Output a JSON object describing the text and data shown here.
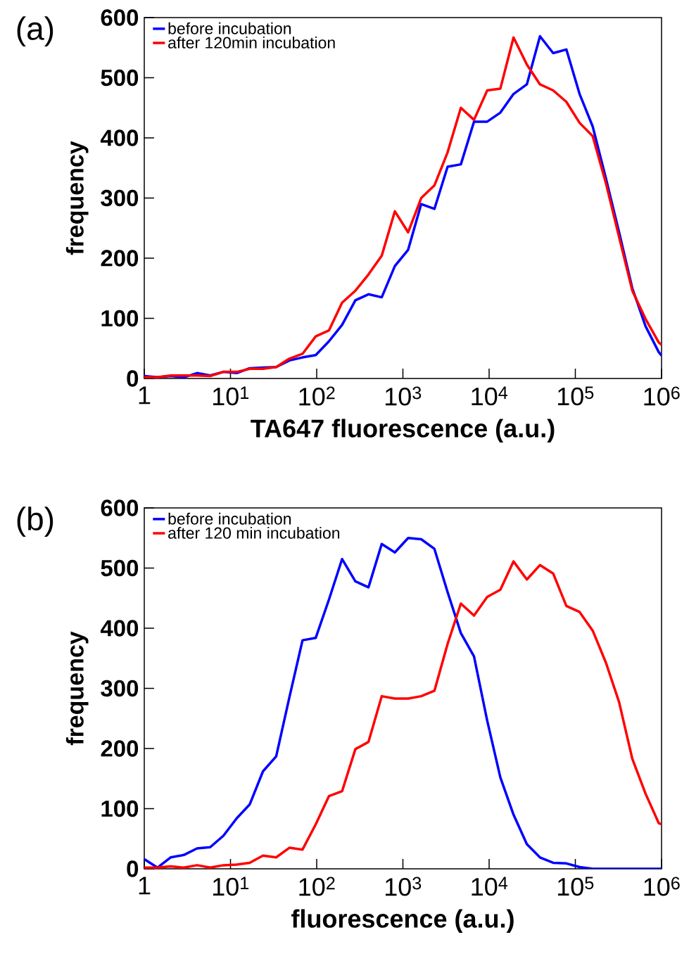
{
  "chart_data": [
    {
      "type": "line",
      "title": "(a)",
      "xlabel": "TA647 fluorescence (a.u.)",
      "ylabel": "frequency",
      "log": "x",
      "legend": "top left",
      "grid": false,
      "marker": "none",
      "line_style": "solid",
      "x": [
        1,
        1.42,
        2.02,
        2.88,
        4.09,
        5.82,
        8.28,
        11.8,
        16.7,
        23.8,
        33.9,
        48.2,
        68.5,
        97.5,
        139,
        197,
        281,
        399,
        568,
        807,
        1150,
        1630,
        2320,
        3300,
        4700,
        6680,
        9510,
        13500,
        19200,
        27400,
        38900,
        55300,
        78700,
        112000,
        159000,
        226000,
        322000,
        458000,
        652000,
        927000,
        1000000
      ],
      "xlim": [
        1,
        1000000
      ],
      "ylim": [
        0,
        600
      ],
      "xticks": [
        1,
        {
          "value": 10,
          "label": "10$^{1}$"
        },
        {
          "value": 100,
          "label": "10$^{2}$"
        },
        {
          "value": 1000,
          "label": "10$^{3}$"
        },
        {
          "value": 10000,
          "label": "10$^{4}$"
        },
        {
          "value": 100000,
          "label": "10$^{5}$"
        },
        {
          "value": 1000000,
          "label": "10$^{6}$"
        }
      ],
      "yticks": [
        0,
        100,
        200,
        300,
        400,
        500,
        600
      ],
      "series": [
        {
          "name": "before incubation",
          "color": "#0000ff",
          "values": [
            4,
            2,
            4,
            2,
            9,
            5,
            11,
            9,
            17,
            18,
            19,
            30,
            35,
            39,
            62,
            89,
            130,
            140,
            135,
            187,
            214,
            290,
            282,
            352,
            356,
            427,
            427,
            442,
            473,
            489,
            569,
            541,
            547,
            473,
            419,
            333,
            243,
            150,
            87,
            44,
            38
          ]
        },
        {
          "name": "after 120min incubation",
          "color": "#ff0000",
          "values": [
            2,
            2,
            5,
            5,
            5,
            4,
            11,
            11,
            16,
            16,
            19,
            33,
            41,
            70,
            80,
            126,
            146,
            173,
            204,
            278,
            243,
            300,
            321,
            376,
            450,
            430,
            479,
            482,
            567,
            522,
            489,
            479,
            460,
            425,
            403,
            325,
            235,
            146,
            99,
            60,
            56
          ]
        }
      ]
    },
    {
      "type": "line",
      "title": "(b)",
      "xlabel": "fluorescence (a.u.)",
      "ylabel": "frequency",
      "log": "x",
      "legend": "top left",
      "grid": false,
      "marker": "none",
      "line_style": "solid",
      "x": [
        1,
        1.42,
        2.02,
        2.88,
        4.09,
        5.82,
        8.28,
        11.8,
        16.7,
        23.8,
        33.9,
        48.2,
        68.5,
        97.5,
        139,
        197,
        281,
        399,
        568,
        807,
        1150,
        1630,
        2320,
        3300,
        4700,
        6680,
        9510,
        13500,
        19200,
        27400,
        38900,
        55300,
        78700,
        112000,
        159000,
        226000,
        322000,
        458000,
        652000,
        927000,
        1000000
      ],
      "xlim": [
        1,
        1000000
      ],
      "ylim": [
        0,
        600
      ],
      "xticks": [
        1,
        {
          "value": 10,
          "label": "10$^{1}$"
        },
        {
          "value": 100,
          "label": "10$^{2}$"
        },
        {
          "value": 1000,
          "label": "10$^{3}$"
        },
        {
          "value": 10000,
          "label": "10$^{4}$"
        },
        {
          "value": 100000,
          "label": "10$^{5}$"
        },
        {
          "value": 1000000,
          "label": "10$^{6}$"
        }
      ],
      "yticks": [
        0,
        100,
        200,
        300,
        400,
        500,
        600
      ],
      "series": [
        {
          "name": "before incubation",
          "color": "#0000ff",
          "values": [
            16,
            2,
            19,
            23,
            34,
            36,
            55,
            84,
            107,
            162,
            187,
            285,
            380,
            384,
            448,
            515,
            478,
            468,
            540,
            526,
            550,
            548,
            532,
            460,
            392,
            353,
            246,
            152,
            90,
            41,
            19,
            10,
            9,
            3,
            0,
            0,
            0,
            0,
            0,
            0,
            0
          ]
        },
        {
          "name": "after 120 min incubation",
          "color": "#ff0000",
          "values": [
            2,
            2,
            4,
            2,
            6,
            2,
            6,
            7,
            10,
            22,
            19,
            35,
            32,
            74,
            121,
            129,
            199,
            211,
            287,
            283,
            283,
            287,
            296,
            374,
            441,
            421,
            452,
            464,
            511,
            481,
            505,
            491,
            437,
            427,
            396,
            343,
            277,
            183,
            125,
            76,
            74
          ]
        }
      ]
    }
  ]
}
